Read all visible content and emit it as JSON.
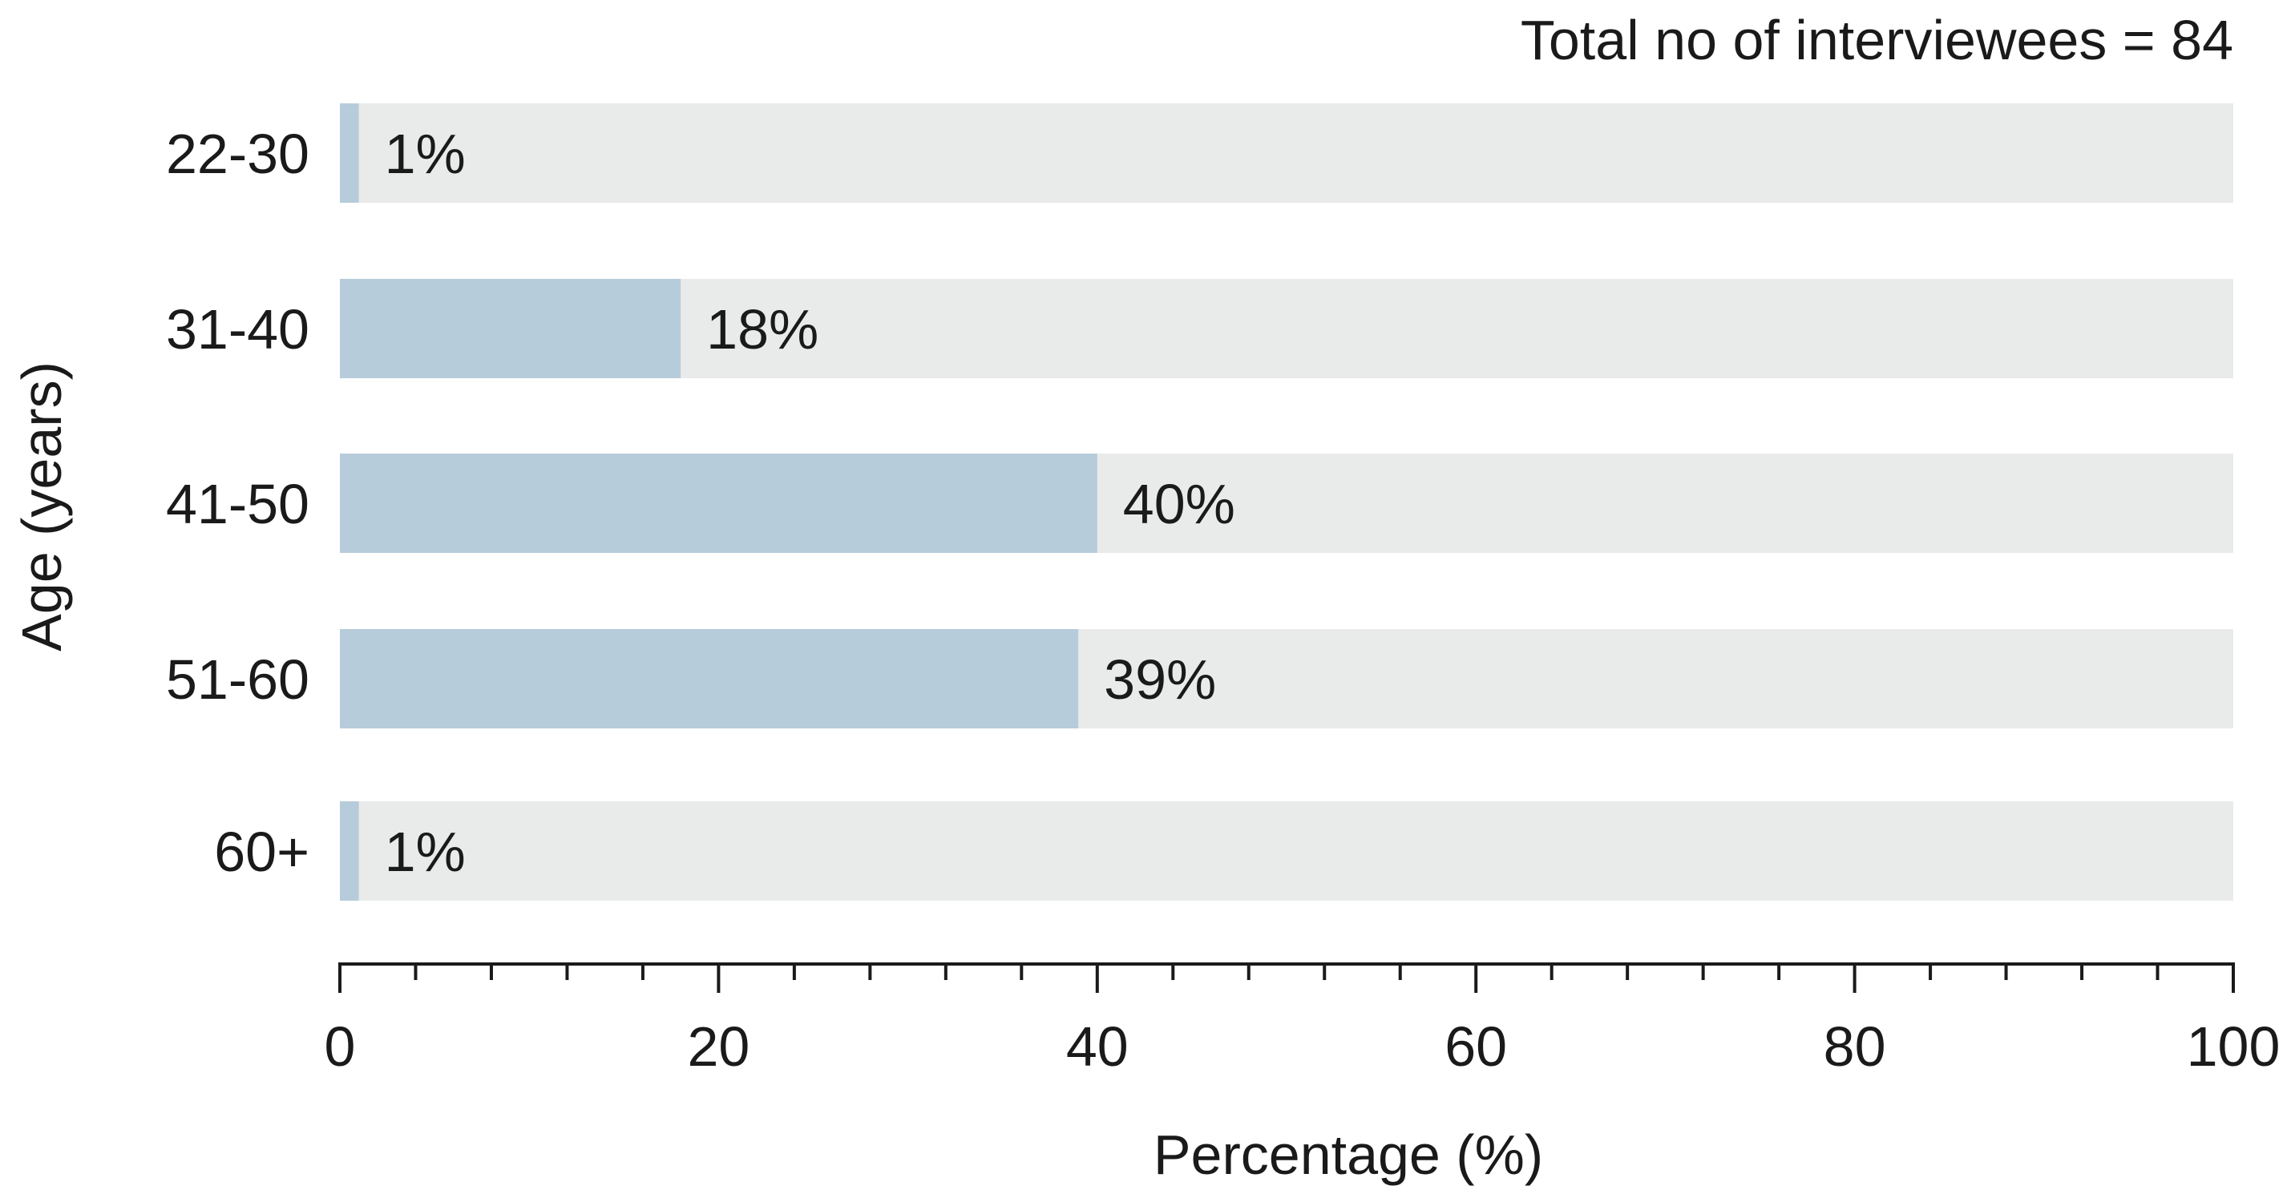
{
  "chart_data": {
    "type": "bar",
    "orientation": "horizontal",
    "annotation": "Total no of interviewees = 84",
    "categories": [
      "22-30",
      "31-40",
      "41-50",
      "51-60",
      "60+"
    ],
    "values": [
      1,
      18,
      40,
      39,
      1
    ],
    "data_labels": [
      "1%",
      "18%",
      "40%",
      "39%",
      "1%"
    ],
    "xlabel": "Percentage (%)",
    "ylabel": "Age (years)",
    "xlim": [
      0,
      100
    ],
    "x_ticks": [
      0,
      20,
      40,
      60,
      80,
      100
    ],
    "x_minor_step": 4,
    "grid": false,
    "colors": {
      "bar": "#b7ccda",
      "track": "#e9ebea",
      "axis": "#1a1a1a"
    }
  }
}
